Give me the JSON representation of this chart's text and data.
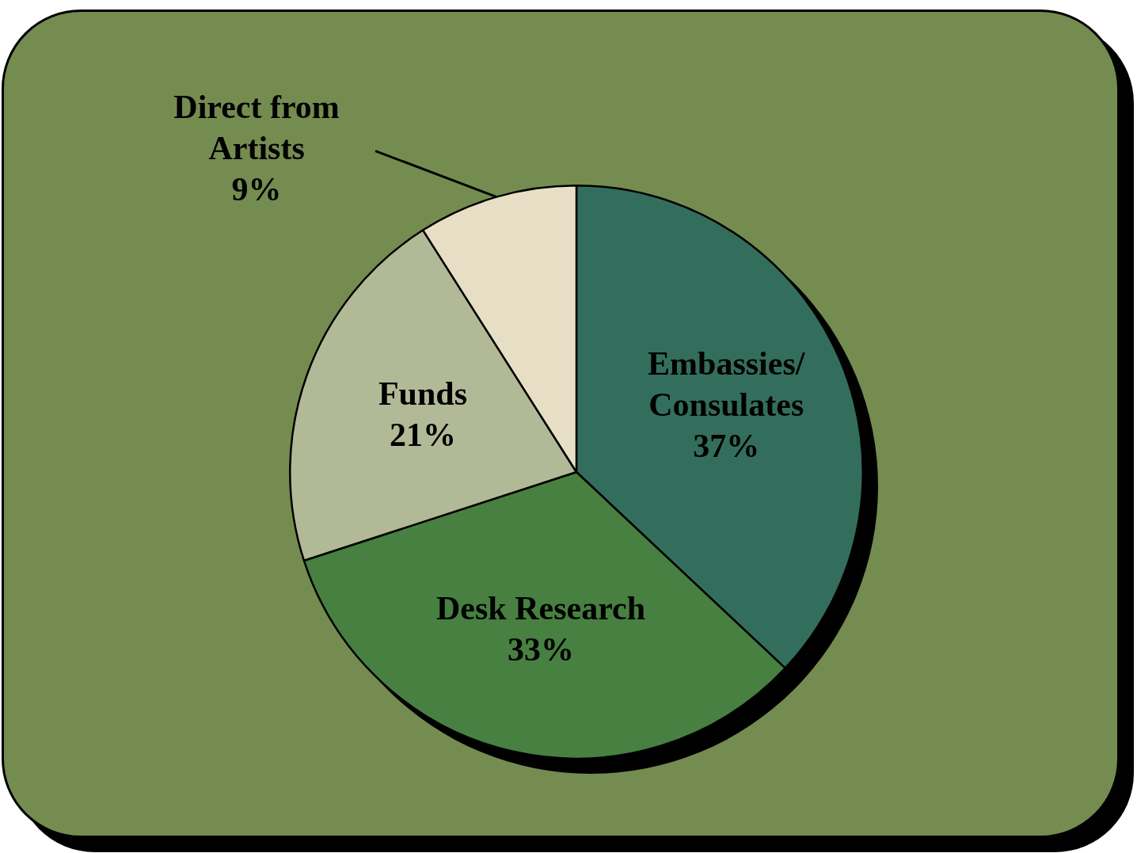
{
  "chart_data": {
    "type": "pie",
    "categories": [
      "Embassies/Consulates",
      "Desk Research",
      "Funds",
      "Direct from Artists"
    ],
    "values": [
      37,
      33,
      21,
      9
    ],
    "colors": [
      "#336e5c",
      "#478040",
      "#b2b996",
      "#e6dfc6"
    ],
    "value_labels": [
      "37%",
      "33%",
      "21%",
      "9%"
    ],
    "legend": false
  }
}
